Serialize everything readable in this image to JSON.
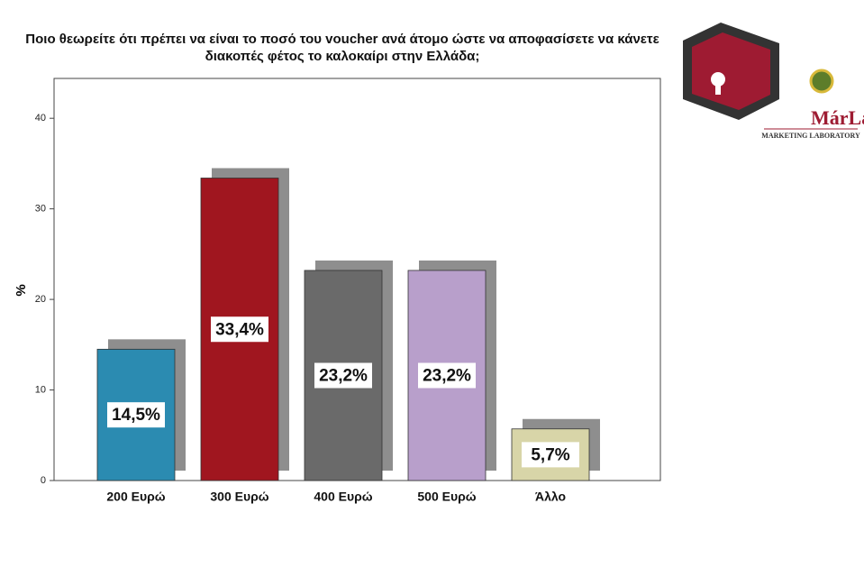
{
  "chart_data": {
    "type": "bar",
    "title": "Ποιο θεωρείτε ότι πρέπει να είναι το ποσό του voucher ανά άτομο ώστε να αποφασίσετε να κάνετε διακοπές φέτος το καλοκαίρι στην Ελλάδα;",
    "y_label": "%",
    "categories": [
      "200 Ευρώ",
      "300 Ευρώ",
      "400 Ευρώ",
      "500 Ευρώ",
      "Άλλο"
    ],
    "values": [
      14.5,
      33.4,
      23.2,
      23.2,
      5.7
    ],
    "value_labels": [
      "14,5%",
      "33,4%",
      "23,2%",
      "23,2%",
      "5,7%"
    ],
    "colors": [
      "#2b8bb1",
      "#a0161f",
      "#6a6a6a",
      "#b89fcb",
      "#d8d5a8"
    ],
    "ylim": [
      0,
      44.4
    ],
    "yticks": [
      0,
      10,
      20,
      30,
      40
    ],
    "grid": false
  },
  "logo": {
    "name": "MárLab",
    "subtitle": "MARKETING LABORATORY"
  }
}
